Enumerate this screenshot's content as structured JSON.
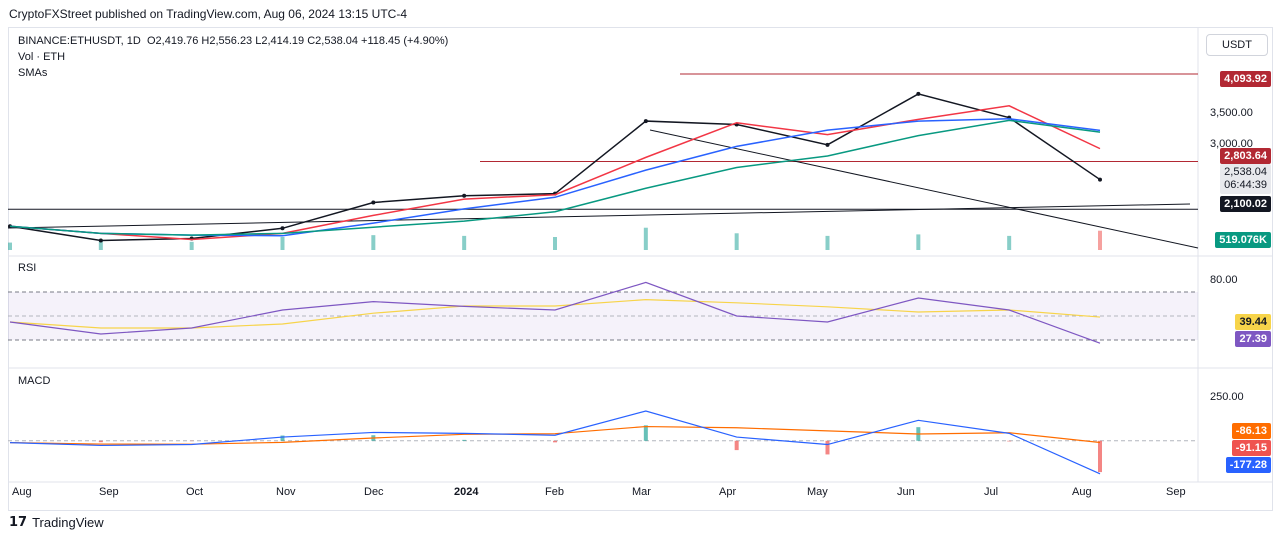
{
  "header": {
    "credit": "CryptoFXStreet published on TradingView.com, Aug 06, 2024 13:15 UTC-4"
  },
  "legend": {
    "symbol": "BINANCE:ETHUSDT, 1D",
    "ohlc": "O2,419.76  H2,556.23  L2,414.19  C2,538.04  +118.45 (+4.90%)",
    "volume": "Vol · ETH",
    "smas": "SMAs"
  },
  "currency_button": "USDT",
  "price_axis": {
    "ticks": [
      "3,500.00",
      "3,000.00"
    ],
    "labels": {
      "level_high": "4,093.92",
      "level_mid": "2,803.64",
      "last_price": "2,538.04",
      "countdown": "06:44:39",
      "support": "2,100.02",
      "volume": "519.076K"
    }
  },
  "rsi_panel": {
    "title": "RSI",
    "tick": "80.00",
    "ma_value": "39.44",
    "rsi_value": "27.39"
  },
  "macd_panel": {
    "title": "MACD",
    "tick": "250.00",
    "hist_value": "-86.13",
    "signal_value": "-91.15",
    "macd_value": "-177.28"
  },
  "time_axis": [
    "Aug",
    "Sep",
    "Oct",
    "Nov",
    "Dec",
    "2024",
    "Feb",
    "Mar",
    "Apr",
    "May",
    "Jun",
    "Jul",
    "Aug",
    "Sep"
  ],
  "footer": {
    "brand": "TradingView"
  },
  "colors": {
    "sma_red": "#f23645",
    "sma_blue": "#2962ff",
    "sma_green": "#089981",
    "resistance": "#b22833",
    "support": "#131722",
    "rsi_line": "#7e57c2",
    "rsi_ma": "#f7d44a",
    "macd_line": "#2962ff",
    "signal_line": "#ff6d00",
    "hist_up": "#26a69a",
    "hist_down": "#ef5350"
  },
  "chart_data": {
    "type": "line",
    "title": "BINANCE:ETHUSDT, 1D",
    "x": [
      "Aug 2023",
      "Sep",
      "Oct",
      "Nov",
      "Dec",
      "2024",
      "Feb",
      "Mar",
      "Apr",
      "May",
      "Jun",
      "Jul",
      "Aug 2024"
    ],
    "series": [
      {
        "name": "ETHUSDT",
        "values": [
          1850,
          1640,
          1670,
          1820,
          2200,
          2300,
          2330,
          3400,
          3350,
          3050,
          3800,
          3450,
          2538
        ]
      },
      {
        "name": "Vol · ETH",
        "values": [
          200,
          250,
          220,
          350,
          400,
          380,
          350,
          600,
          450,
          380,
          420,
          380,
          519
        ]
      }
    ],
    "horizontal_levels": [
      4093.92,
      2803.64,
      2100.02
    ],
    "ylim": [
      1500,
      4300
    ],
    "last": {
      "open": 2419.76,
      "high": 2556.23,
      "low": 2414.19,
      "close": 2538.04,
      "change": 118.45,
      "change_pct": 4.9
    },
    "rsi": {
      "values": [
        45,
        35,
        40,
        55,
        62,
        58,
        55,
        78,
        50,
        45,
        65,
        55,
        27.39
      ],
      "ma": 39.44,
      "upper": 70,
      "lower": 30,
      "ylim": [
        20,
        90
      ]
    },
    "macd": {
      "macd": [
        -10,
        -25,
        -20,
        20,
        45,
        40,
        30,
        160,
        20,
        -20,
        110,
        40,
        -177.28
      ],
      "signal": -91.15,
      "histogram": -86.13,
      "ylim": [
        -200,
        300
      ]
    }
  }
}
